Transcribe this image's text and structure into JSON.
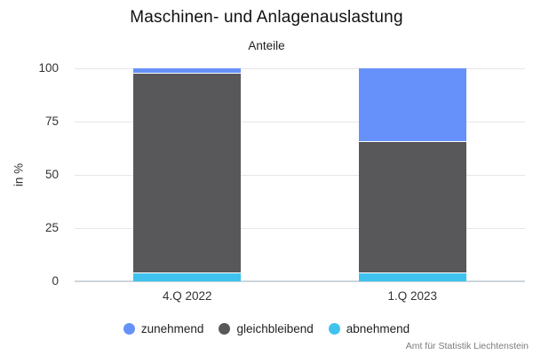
{
  "header": {
    "title": "Maschinen- und Anlagenauslastung",
    "subtitle": "Anteile"
  },
  "footer": {
    "source": "Amt für Statistik Liechtenstein"
  },
  "colors": {
    "zunehmend": "#6691FA",
    "gleichbleibend": "#58585A",
    "abnehmend": "#3FC3EE",
    "gridline": "#e6e6e6",
    "baseline": "#ccd6dc"
  },
  "chart_data": {
    "type": "bar",
    "stacked": true,
    "title": "Maschinen- und Anlagenauslastung",
    "subtitle": "Anteile",
    "categories": [
      "4.Q 2022",
      "1.Q 2023"
    ],
    "series": [
      {
        "name": "zunehmend",
        "color": "#6691FA",
        "values": [
          2,
          34
        ]
      },
      {
        "name": "gleichbleibend",
        "color": "#58585A",
        "values": [
          94,
          62
        ]
      },
      {
        "name": "abnehmend",
        "color": "#3FC3EE",
        "values": [
          4,
          4
        ]
      }
    ],
    "xlabel": "",
    "ylabel": "in %",
    "ylim": [
      0,
      100
    ],
    "yticks": [
      0,
      25,
      50,
      75,
      100
    ],
    "grid": true,
    "legend_position": "bottom",
    "source": "Amt für Statistik Liechtenstein"
  }
}
